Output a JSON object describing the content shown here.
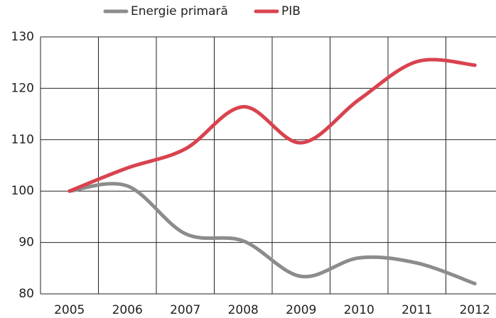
{
  "chart_data": {
    "type": "line",
    "categories": [
      "2005",
      "2006",
      "2007",
      "2008",
      "2009",
      "2010",
      "2011",
      "2012"
    ],
    "series": [
      {
        "name": "Energie primară",
        "color": "#8c8c8c",
        "values": [
          100,
          101,
          91.7,
          90.3,
          83.4,
          87,
          86,
          82
        ]
      },
      {
        "name": "PIB",
        "color": "#d8434f",
        "values": [
          100,
          104.5,
          108.2,
          116.4,
          109.4,
          117.8,
          125.2,
          124.5
        ]
      }
    ],
    "ylim": [
      80,
      130
    ],
    "yticks": [
      80,
      90,
      100,
      110,
      120,
      130
    ],
    "grid": true,
    "legend": "top"
  }
}
